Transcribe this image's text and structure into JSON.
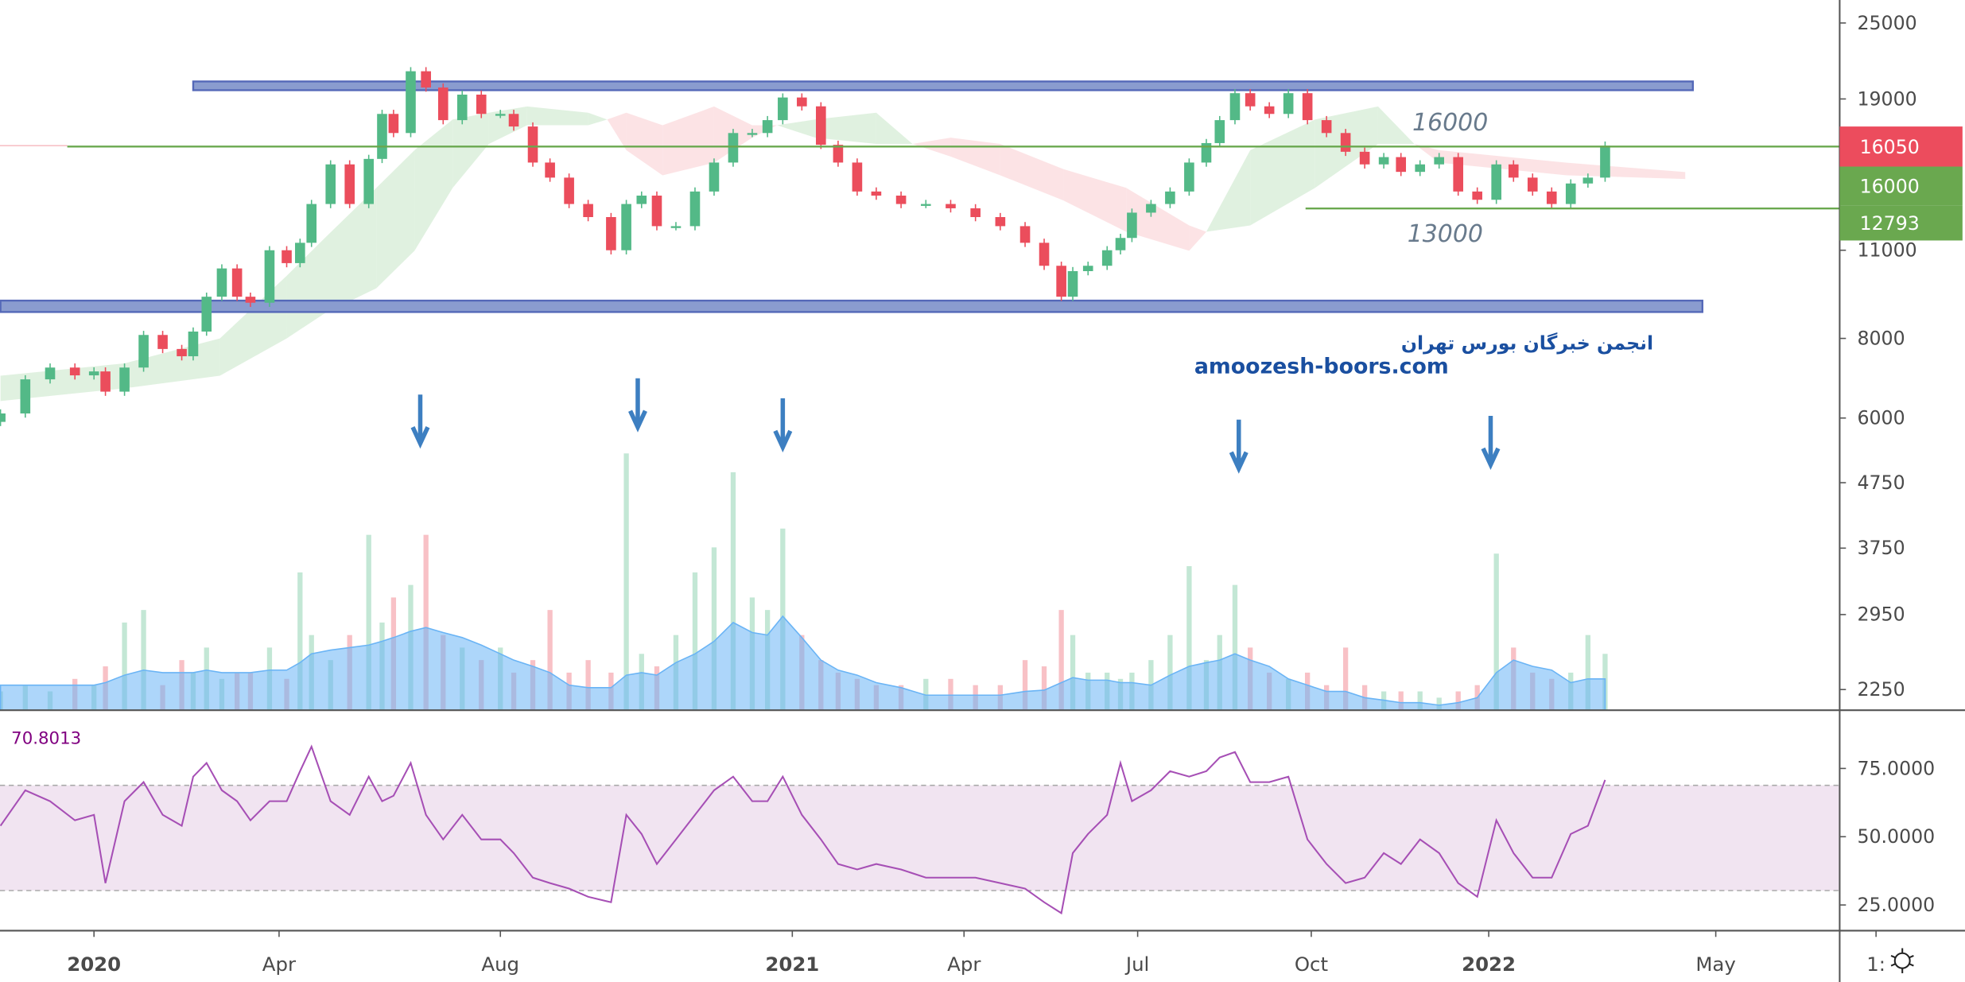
{
  "colors": {
    "up": "#53b987",
    "down": "#eb4d5c",
    "volume_ma": "#6ab4f5",
    "cloud_green": "#d6ecd6",
    "cloud_red": "#fbd9dc",
    "zone": "#8a9ccf",
    "zone_border": "#5468b8",
    "level_line": "#6aa84f",
    "rsi_line": "#a64fb5",
    "rsi_band": "#f1e4f1",
    "arrow": "#3d7fc1",
    "watermark": "#1a4fa0"
  },
  "price_axis": {
    "scale": "log",
    "ticks": [
      "25000",
      "19000",
      "11000",
      "8000",
      "6000",
      "4750",
      "3750",
      "2950",
      "2250"
    ],
    "labels": [
      {
        "text": "16050",
        "kind": "last-price",
        "color": "#ec4c5d"
      },
      {
        "text": "16000",
        "kind": "level",
        "color": "#6aa84f"
      },
      {
        "text": "12793",
        "kind": "level",
        "color": "#6aa84f"
      }
    ]
  },
  "rsi_axis": {
    "ticks": [
      "75.0000",
      "50.0000",
      "25.0000"
    ],
    "upper": 70,
    "lower": 30
  },
  "time_axis": {
    "labels": [
      {
        "text": "2020",
        "date": "2020-01-01",
        "year": true
      },
      {
        "text": "Apr",
        "date": "2020-04-07",
        "year": false
      },
      {
        "text": "Aug",
        "date": "2020-08-01",
        "year": false
      },
      {
        "text": "2021",
        "date": "2021-01-01",
        "year": true
      },
      {
        "text": "Apr",
        "date": "2021-04-01",
        "year": false
      },
      {
        "text": "Jul",
        "date": "2021-07-01",
        "year": false
      },
      {
        "text": "Oct",
        "date": "2021-09-30",
        "year": false
      },
      {
        "text": "2022",
        "date": "2022-01-01",
        "year": true
      },
      {
        "text": "May",
        "date": "2022-04-30",
        "year": false
      },
      {
        "text": "1:",
        "date": "2022-07-23",
        "year": false
      }
    ]
  },
  "annotations": {
    "level_16000_text": "16000",
    "level_13000_text": "13000",
    "watermark_fa": "انجمن خبرگان بورس تهران",
    "watermark_url": "amoozesh-boors.com",
    "rsi_value": "70.8013"
  },
  "drawings": {
    "zones": [
      {
        "name": "resistance-zone",
        "from": "2020-02-22",
        "to": "2022-04-18",
        "top": 20240,
        "bottom": 19610
      },
      {
        "name": "support-zone",
        "from": "2019-11-13",
        "to": "2022-04-23",
        "top": 9170,
        "bottom": 8800
      }
    ],
    "levels": [
      {
        "name": "level-16000-line",
        "price": 16000,
        "from": "2019-12-18"
      },
      {
        "name": "level-12793-line",
        "price": 12793,
        "from": "2021-09-27"
      }
    ],
    "arrows": [
      "2020-06-20",
      "2020-10-12",
      "2020-12-27",
      "2021-08-23",
      "2022-01-02"
    ]
  },
  "chart_data": {
    "type": "candlestick",
    "price_scale": "log",
    "dates": [
      "2019-11-13",
      "2019-11-26",
      "2019-12-09",
      "2019-12-22",
      "2020-01-01",
      "2020-01-07",
      "2020-01-17",
      "2020-01-27",
      "2020-02-06",
      "2020-02-16",
      "2020-02-22",
      "2020-02-29",
      "2020-03-08",
      "2020-03-16",
      "2020-03-23",
      "2020-04-02",
      "2020-04-11",
      "2020-04-18",
      "2020-04-24",
      "2020-05-04",
      "2020-05-14",
      "2020-05-24",
      "2020-05-31",
      "2020-06-06",
      "2020-06-15",
      "2020-06-23",
      "2020-07-02",
      "2020-07-12",
      "2020-07-22",
      "2020-08-01",
      "2020-08-08",
      "2020-08-18",
      "2020-08-27",
      "2020-09-06",
      "2020-09-16",
      "2020-09-28",
      "2020-10-06",
      "2020-10-14",
      "2020-10-22",
      "2020-11-01",
      "2020-11-11",
      "2020-11-21",
      "2020-12-01",
      "2020-12-11",
      "2020-12-19",
      "2020-12-27",
      "2021-01-06",
      "2021-01-16",
      "2021-01-25",
      "2021-02-04",
      "2021-02-14",
      "2021-02-27",
      "2021-03-12",
      "2021-03-25",
      "2021-04-07",
      "2021-04-20",
      "2021-05-03",
      "2021-05-13",
      "2021-05-22",
      "2021-05-28",
      "2021-06-05",
      "2021-06-15",
      "2021-06-22",
      "2021-06-28",
      "2021-07-08",
      "2021-07-18",
      "2021-07-28",
      "2021-08-06",
      "2021-08-13",
      "2021-08-21",
      "2021-08-29",
      "2021-09-08",
      "2021-09-18",
      "2021-09-28",
      "2021-10-08",
      "2021-10-18",
      "2021-10-28",
      "2021-11-07",
      "2021-11-16",
      "2021-11-26",
      "2021-12-06",
      "2021-12-16",
      "2021-12-26",
      "2022-01-05",
      "2022-01-14",
      "2022-01-24",
      "2022-02-03",
      "2022-02-13",
      "2022-02-22",
      "2022-03-03"
    ],
    "close": [
      6100,
      6900,
      7200,
      7000,
      7100,
      6600,
      7200,
      8100,
      7700,
      7500,
      8200,
      9300,
      10300,
      9300,
      9100,
      11000,
      10500,
      11300,
      13000,
      15000,
      13000,
      15300,
      18000,
      16800,
      21000,
      19800,
      17600,
      19300,
      18000,
      18000,
      17200,
      15100,
      14300,
      13000,
      12400,
      11000,
      13000,
      13400,
      12000,
      12000,
      13600,
      15100,
      16800,
      16800,
      17600,
      19100,
      18500,
      16100,
      15100,
      13600,
      13400,
      13000,
      13000,
      12800,
      12400,
      12000,
      11300,
      10400,
      9300,
      10200,
      10400,
      11000,
      11500,
      12600,
      13000,
      13600,
      15100,
      16200,
      17600,
      19400,
      18500,
      18000,
      19400,
      17600,
      16800,
      15700,
      15000,
      15400,
      14600,
      15000,
      15400,
      13600,
      13200,
      15000,
      14300,
      13600,
      13000,
      14000,
      14300,
      16050
    ],
    "volume": [
      15,
      20,
      15,
      25,
      20,
      35,
      70,
      80,
      20,
      40,
      30,
      50,
      25,
      30,
      30,
      50,
      25,
      110,
      60,
      40,
      60,
      140,
      70,
      90,
      100,
      140,
      60,
      50,
      40,
      50,
      30,
      40,
      80,
      30,
      40,
      30,
      205,
      45,
      35,
      60,
      110,
      130,
      190,
      90,
      80,
      145,
      60,
      40,
      30,
      25,
      20,
      20,
      25,
      25,
      20,
      20,
      40,
      35,
      80,
      60,
      30,
      30,
      25,
      30,
      40,
      60,
      115,
      40,
      60,
      100,
      50,
      30,
      25,
      30,
      20,
      50,
      20,
      15,
      15,
      15,
      10,
      15,
      20,
      125,
      50,
      30,
      25,
      30,
      60,
      45
    ],
    "volume_ma": [
      20,
      20,
      20,
      20,
      20,
      22,
      28,
      32,
      30,
      30,
      30,
      32,
      30,
      30,
      30,
      32,
      32,
      38,
      45,
      48,
      50,
      52,
      55,
      58,
      63,
      66,
      62,
      58,
      52,
      45,
      40,
      35,
      30,
      20,
      18,
      18,
      28,
      30,
      28,
      38,
      45,
      55,
      70,
      62,
      60,
      75,
      58,
      40,
      32,
      28,
      22,
      18,
      12,
      12,
      12,
      12,
      15,
      16,
      22,
      26,
      24,
      24,
      22,
      22,
      20,
      28,
      35,
      38,
      40,
      45,
      40,
      35,
      25,
      20,
      15,
      15,
      10,
      8,
      6,
      6,
      4,
      6,
      10,
      30,
      40,
      35,
      32,
      22,
      25,
      25
    ],
    "rsi": [
      54,
      67,
      63,
      56,
      58,
      33,
      63,
      70,
      58,
      54,
      72,
      77,
      67,
      63,
      56,
      63,
      63,
      74,
      83,
      63,
      58,
      72,
      63,
      65,
      77,
      58,
      49,
      58,
      49,
      49,
      44,
      35,
      33,
      31,
      28,
      26,
      58,
      51,
      40,
      49,
      58,
      67,
      72,
      63,
      63,
      72,
      58,
      49,
      40,
      38,
      40,
      38,
      35,
      35,
      35,
      33,
      31,
      26,
      22,
      44,
      51,
      58,
      77,
      63,
      67,
      74,
      72,
      74,
      79,
      81,
      70,
      70,
      72,
      49,
      40,
      33,
      35,
      44,
      40,
      49,
      44,
      33,
      28,
      56,
      44,
      35,
      35,
      51,
      54,
      70.8
    ],
    "ichimoku_cloud": [
      {
        "date": "2019-11-13",
        "a": 6990,
        "b": 6380
      },
      {
        "date": "2020-01-17",
        "a": 7310,
        "b": 6680
      },
      {
        "date": "2020-03-07",
        "a": 8000,
        "b": 6990
      },
      {
        "date": "2020-04-11",
        "a": 10030,
        "b": 8000
      },
      {
        "date": "2020-05-01",
        "a": 11500,
        "b": 8760
      },
      {
        "date": "2020-05-28",
        "a": 13780,
        "b": 9590
      },
      {
        "date": "2020-06-17",
        "a": 15790,
        "b": 10980
      },
      {
        "date": "2020-07-07",
        "a": 17640,
        "b": 13780
      },
      {
        "date": "2020-07-26",
        "a": 18080,
        "b": 16150
      },
      {
        "date": "2020-08-15",
        "a": 18490,
        "b": 17280
      },
      {
        "date": "2020-09-16",
        "a": 18080,
        "b": 17280
      },
      {
        "date": "2020-09-26",
        "a": 17640,
        "b": 17640
      },
      {
        "date": "2020-10-06",
        "a": 15790,
        "b": 18080
      },
      {
        "date": "2020-10-25",
        "a": 14420,
        "b": 17280
      },
      {
        "date": "2020-11-21",
        "a": 15090,
        "b": 18490
      },
      {
        "date": "2020-12-11",
        "a": 16520,
        "b": 17280
      },
      {
        "date": "2020-12-24",
        "a": 17280,
        "b": 17280
      },
      {
        "date": "2021-01-13",
        "a": 17640,
        "b": 16520
      },
      {
        "date": "2021-02-14",
        "a": 18080,
        "b": 16150
      },
      {
        "date": "2021-03-05",
        "a": 16150,
        "b": 16150
      },
      {
        "date": "2021-03-25",
        "a": 15430,
        "b": 16520
      },
      {
        "date": "2021-04-20",
        "a": 14420,
        "b": 16150
      },
      {
        "date": "2021-05-23",
        "a": 13170,
        "b": 14750
      },
      {
        "date": "2021-06-25",
        "a": 11760,
        "b": 13780
      },
      {
        "date": "2021-07-28",
        "a": 10980,
        "b": 12030
      },
      {
        "date": "2021-08-06",
        "a": 11760,
        "b": 11760
      },
      {
        "date": "2021-08-29",
        "a": 15790,
        "b": 12030
      },
      {
        "date": "2021-10-02",
        "a": 17640,
        "b": 13780
      },
      {
        "date": "2021-11-04",
        "a": 18490,
        "b": 16150
      },
      {
        "date": "2021-11-23",
        "a": 16150,
        "b": 16150
      },
      {
        "date": "2021-12-06",
        "a": 15090,
        "b": 15790
      },
      {
        "date": "2022-02-11",
        "a": 14420,
        "b": 15090
      },
      {
        "date": "2022-04-14",
        "a": 14230,
        "b": 14590
      }
    ]
  }
}
